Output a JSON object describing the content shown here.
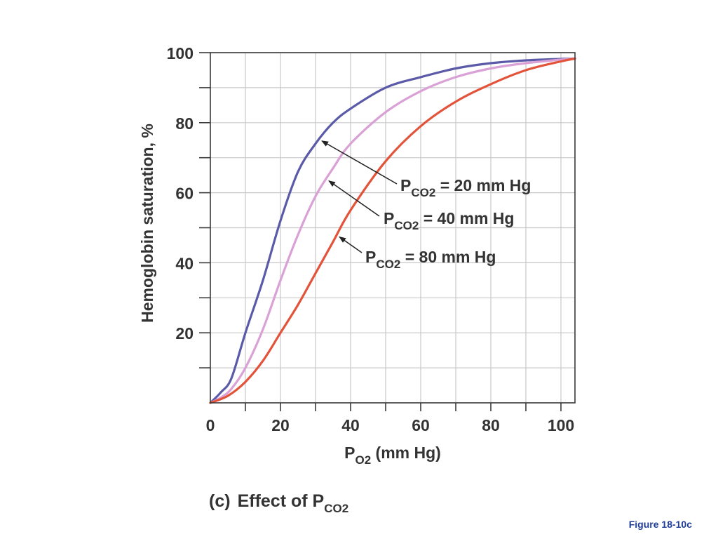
{
  "chart_data": {
    "type": "line",
    "ylabel": "Hemoglobin saturation, %",
    "xlabel": {
      "main": "P",
      "sub": "O2",
      "rest": " (mm Hg)"
    },
    "xlim": [
      0,
      104
    ],
    "ylim": [
      0,
      100
    ],
    "x_ticks": [
      0,
      20,
      40,
      60,
      80,
      100
    ],
    "y_ticks": [
      20,
      40,
      60,
      80,
      100
    ],
    "grid": true,
    "series": [
      {
        "name": "PCO2 = 20 mm Hg",
        "label_main": "P",
        "label_sub": "CO2",
        "label_rest": " = 20 mm Hg",
        "color": "#5a5aa8",
        "x": [
          0,
          3,
          6,
          10,
          15,
          20,
          25,
          30,
          35,
          40,
          50,
          60,
          70,
          80,
          90,
          100,
          104
        ],
        "y": [
          0,
          3,
          7,
          20,
          35,
          52,
          66,
          74,
          80,
          84,
          90,
          93,
          95.5,
          97,
          97.8,
          98.2,
          98.3
        ]
      },
      {
        "name": "PCO2 = 40 mm Hg",
        "label_main": "P",
        "label_sub": "CO2",
        "label_rest": " = 40 mm Hg",
        "color": "#d9a1d6",
        "x": [
          0,
          3,
          6,
          10,
          15,
          20,
          25,
          30,
          35,
          40,
          50,
          60,
          70,
          80,
          90,
          100,
          104
        ],
        "y": [
          0,
          1.5,
          4,
          10,
          21,
          35,
          48,
          59,
          67,
          74,
          83,
          89,
          93,
          95.5,
          97,
          98,
          98.3
        ]
      },
      {
        "name": "PCO2 = 80 mm Hg",
        "label_main": "P",
        "label_sub": "CO2",
        "label_rest": " = 80 mm Hg",
        "color": "#e3533a",
        "x": [
          0,
          5,
          10,
          15,
          20,
          25,
          30,
          35,
          40,
          50,
          60,
          70,
          80,
          90,
          100,
          104
        ],
        "y": [
          0,
          2,
          6,
          12,
          20,
          28,
          37,
          46,
          55,
          69,
          79,
          86,
          91,
          95,
          97.5,
          98.3
        ]
      }
    ]
  },
  "caption": {
    "letter": "(c)",
    "text": "Effect of P",
    "sub": "CO2"
  },
  "figure_label": "Figure 18-10c"
}
